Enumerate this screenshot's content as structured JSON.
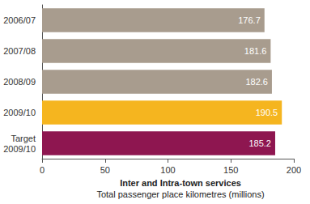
{
  "chart_data": {
    "type": "bar",
    "orientation": "horizontal",
    "title": "Inter and Intra-town services",
    "subtitle": "Total passenger place kilometres (millions)",
    "categories": [
      "2006/07",
      "2007/08",
      "2008/09",
      "2009/10",
      "Target\n2009/10"
    ],
    "values": [
      176.7,
      181.6,
      182.6,
      190.5,
      185.2
    ],
    "colors": [
      "#a89c8e",
      "#a89c8e",
      "#a89c8e",
      "#f5b51f",
      "#8e1650"
    ],
    "xlim": [
      0,
      200
    ],
    "xticks": [
      0,
      50,
      100,
      150,
      200
    ],
    "data_labels": true,
    "grid": false
  }
}
